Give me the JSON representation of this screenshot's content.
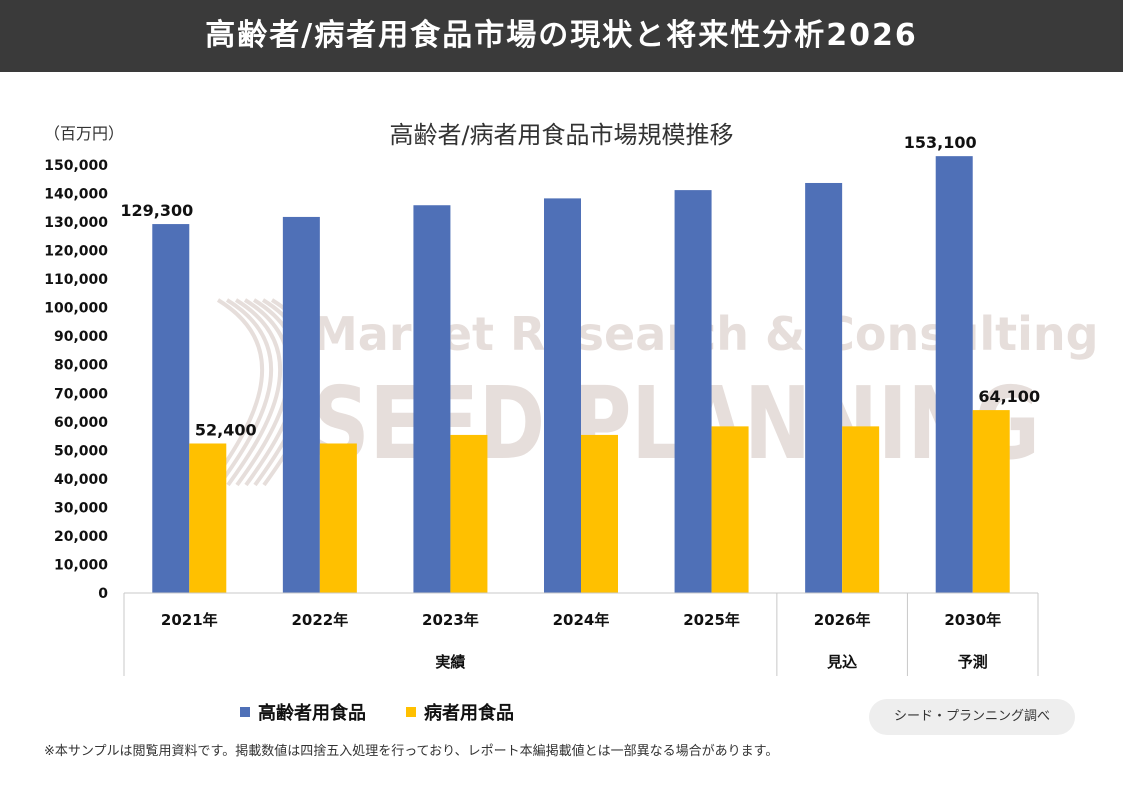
{
  "header": {
    "title": "高齢者/病者用食品市場の現状と将来性分析2026"
  },
  "chart_data": {
    "type": "bar",
    "title": "高齢者/病者用食品市場規模推移",
    "unit_label": "（百万円）",
    "categories": [
      "2021年",
      "2022年",
      "2023年",
      "2024年",
      "2025年",
      "2026年",
      "2030年"
    ],
    "groups": [
      {
        "label": "実績",
        "start": 0,
        "end": 4
      },
      {
        "label": "見込",
        "start": 5,
        "end": 5
      },
      {
        "label": "予測",
        "start": 6,
        "end": 6
      }
    ],
    "series": [
      {
        "name": "高齢者用食品",
        "color": "#4f70b7",
        "values": [
          129300,
          131800,
          135900,
          138300,
          141200,
          143700,
          153100
        ],
        "data_labels": [
          "129,300",
          "",
          "",
          "",
          "",
          "",
          "153,100"
        ]
      },
      {
        "name": "病者用食品",
        "color": "#ffc000",
        "values": [
          52400,
          52400,
          55400,
          55400,
          58400,
          58400,
          64100
        ],
        "data_labels": [
          "52,400",
          "",
          "",
          "",
          "",
          "",
          "64,100"
        ]
      }
    ],
    "y_ticks": [
      "0",
      "10,000",
      "20,000",
      "30,000",
      "40,000",
      "50,000",
      "60,000",
      "70,000",
      "80,000",
      "90,000",
      "100,000",
      "110,000",
      "120,000",
      "130,000",
      "140,000",
      "150,000"
    ],
    "ylim": [
      0,
      150000
    ],
    "grid": false,
    "legend": "bottom"
  },
  "watermark": {
    "line1": "Market Research & Consulting",
    "line2": "SEED PLANNING"
  },
  "source_badge": "シード・プランニング調べ",
  "footnote": "※本サンプルは閲覧用資料です。掲載数値は四捨五入処理を行っており、レポート本編掲載値とは一部異なる場合があります。"
}
